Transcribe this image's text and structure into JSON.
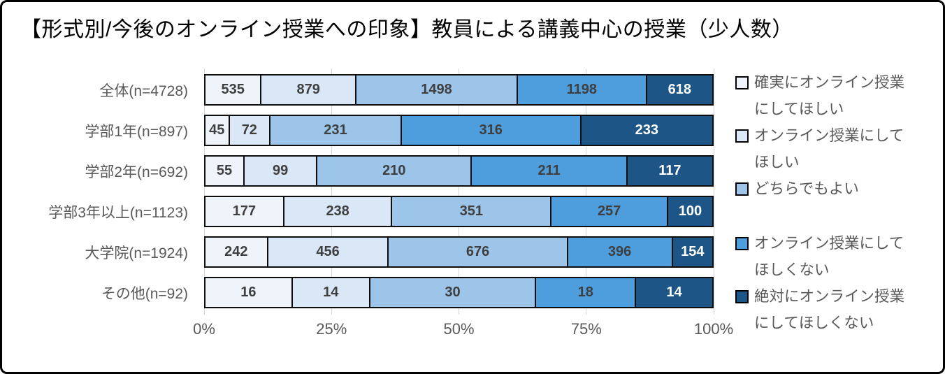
{
  "chart_data": {
    "type": "bar",
    "variant": "horizontal-stacked-100pct",
    "title": "【形式別/今後のオンライン授業への印象】教員による講義中心の授業（少人数）",
    "categories": [
      "全体(n=4728)",
      "学部1年(n=897)",
      "学部2年(n=692)",
      "学部3年以上(n=1123)",
      "大学院(n=1924)",
      "その他(n=92)"
    ],
    "series": [
      {
        "name": "確実にオンライン授業にしてほしい",
        "color": "#eff4fb",
        "value_text_color": "#3f3f3f",
        "values": [
          535,
          45,
          55,
          177,
          242,
          16
        ]
      },
      {
        "name": "オンライン授業にしてほしい",
        "color": "#d9e7f6",
        "value_text_color": "#3f3f3f",
        "values": [
          879,
          72,
          99,
          238,
          456,
          14
        ]
      },
      {
        "name": "どちらでもよい",
        "color": "#9cc5e9",
        "value_text_color": "#3f3f3f",
        "values": [
          1498,
          231,
          210,
          351,
          676,
          30
        ]
      },
      {
        "name": "オンライン授業にしてほしくない",
        "color": "#4e9ddc",
        "value_text_color": "#3f3f3f",
        "values": [
          1198,
          316,
          211,
          257,
          396,
          18
        ]
      },
      {
        "name": "絶対にオンライン授業にしてほしくない",
        "color": "#1c5586",
        "value_text_color": "#ffffff",
        "values": [
          618,
          233,
          117,
          100,
          154,
          14
        ]
      }
    ],
    "x_ticks": [
      "0%",
      "25%",
      "50%",
      "75%",
      "100%"
    ],
    "xlim": [
      0,
      100
    ],
    "grid": true,
    "legend_position": "right",
    "gridline_color": "#d6d6d6",
    "border_color": "#0d0d0d"
  }
}
